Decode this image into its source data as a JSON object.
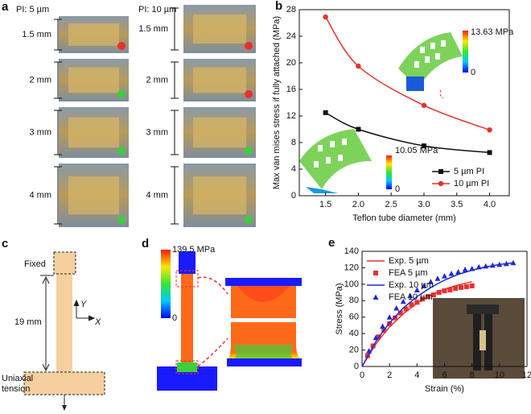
{
  "panels": {
    "a": {
      "label": "a",
      "columns": [
        {
          "title": "PI: 5 µm",
          "rows": [
            "1.5 mm",
            "2 mm",
            "3 mm",
            "4 mm"
          ],
          "dots": [
            "#e8312f",
            "#3ccf3c",
            "#3ccf3c",
            "#3ccf3c"
          ]
        },
        {
          "title": "PI: 10 µm",
          "rows": [
            "1.5 mm",
            "2 mm",
            "3 mm",
            "4 mm"
          ],
          "dots": [
            "#e8312f",
            "#e8312f",
            "#3ccf3c",
            "#3ccf3c"
          ]
        }
      ]
    },
    "c": {
      "label": "c",
      "fixed": "Fixed",
      "length": "19 mm",
      "axis_y": "Y",
      "axis_x": "X",
      "load": [
        "Uniaxial",
        "tension"
      ]
    },
    "d": {
      "label": "d",
      "max": "139.5 MPa",
      "min": "0"
    }
  },
  "chart_data": [
    {
      "type": "line",
      "panel_label": "b",
      "x_label": "Teflon tube diameter (mm)",
      "y_label": "Max van mises stress if fully attached (MPa)",
      "x": [
        1.5,
        2,
        3,
        4
      ],
      "xlim": [
        1.1,
        4.3
      ],
      "xticks": [
        {
          "value": 1.5,
          "label": "1.5"
        },
        {
          "value": 2,
          "label": "2.0"
        },
        {
          "value": 2.5,
          "label": "2.5"
        },
        {
          "value": 3,
          "label": "3.0"
        },
        {
          "value": 3.5,
          "label": "3.5"
        },
        {
          "value": 4,
          "label": "4.0"
        }
      ],
      "ylim": [
        0,
        28
      ],
      "yticks": [
        0,
        4,
        8,
        12,
        16,
        20,
        24,
        28
      ],
      "legend": "lower-right",
      "smooth": true,
      "series": [
        {
          "name": "5 µm PI",
          "color": "#111111",
          "marker": "square",
          "line": true,
          "values": [
            12.5,
            10.0,
            7.5,
            6.5
          ]
        },
        {
          "name": "10 µm PI",
          "color": "#e8312f",
          "marker": "circle",
          "line": true,
          "values": [
            26.9,
            19.5,
            13.6,
            9.9
          ]
        }
      ],
      "annotations": [
        "13.63 MPa",
        "0",
        "10.05 MPa",
        "0"
      ]
    },
    {
      "type": "line",
      "panel_label": "e",
      "x_label": "Strain (%)",
      "y_label": "Stress (MPa)",
      "xlim": [
        0,
        12
      ],
      "xticks": [
        0,
        2,
        4,
        6,
        8,
        10,
        12
      ],
      "ylim": [
        0,
        140
      ],
      "yticks": [
        0,
        20,
        40,
        60,
        80,
        100,
        120,
        140
      ],
      "legend": "upper-left",
      "smooth": false,
      "series": [
        {
          "name": "Exp. 5 µm",
          "color": "#e8312f",
          "marker": "none",
          "line": true,
          "x": [
            0,
            0.5,
            1,
            1.5,
            2,
            3,
            4,
            5,
            6,
            7,
            8
          ],
          "values": [
            0,
            14,
            27,
            38,
            48,
            64,
            77,
            87,
            94,
            99,
            103
          ]
        },
        {
          "name": "FEA 5 µm",
          "color": "#e8312f",
          "marker": "square",
          "line": false,
          "x": [
            0.4,
            0.8,
            1.2,
            1.6,
            2.0,
            2.4,
            2.8,
            3.2,
            3.6,
            4.0,
            4.4,
            4.8,
            5.2,
            5.6,
            6.0,
            6.4,
            6.8,
            7.2,
            7.6,
            8.0
          ],
          "values": [
            13,
            25,
            36,
            44,
            52,
            59,
            65,
            70,
            75,
            78,
            82,
            85,
            87,
            90,
            92,
            93,
            95,
            96,
            97,
            98
          ]
        },
        {
          "name": "Exp. 10 µm",
          "color": "#1c2bd6",
          "marker": "none",
          "line": true,
          "x": [
            0,
            0.5,
            1,
            1.5,
            2,
            3,
            4,
            5,
            6,
            7,
            8,
            9,
            10,
            11
          ],
          "values": [
            0,
            15,
            30,
            42,
            53,
            71,
            85,
            96,
            105,
            112,
            117,
            121,
            124,
            126
          ]
        },
        {
          "name": "FEA 10 µm",
          "color": "#1c2bd6",
          "marker": "triangle",
          "line": false,
          "x": [
            0.5,
            1,
            1.5,
            2,
            2.5,
            3,
            3.5,
            4,
            4.5,
            5,
            5.5,
            6,
            6.5,
            7,
            7.5,
            8,
            8.5,
            9,
            9.5,
            10,
            10.5,
            11
          ],
          "values": [
            19,
            35,
            49,
            60,
            71,
            79,
            86,
            93,
            98,
            103,
            107,
            110,
            113,
            115,
            118,
            119,
            121,
            122,
            123,
            124,
            125,
            126
          ]
        }
      ]
    }
  ]
}
